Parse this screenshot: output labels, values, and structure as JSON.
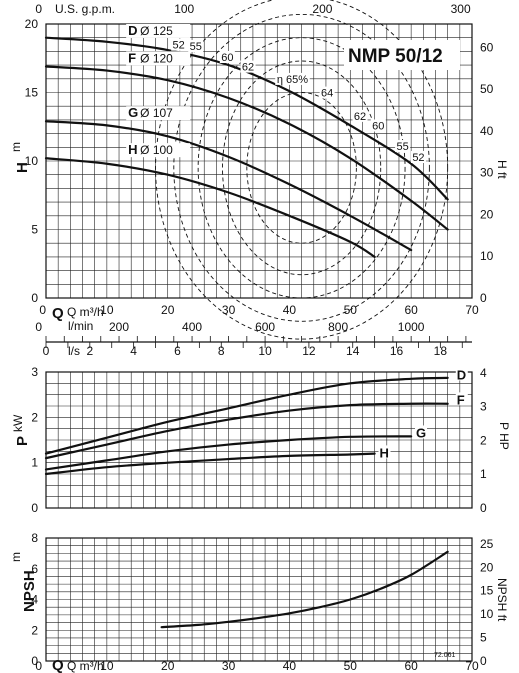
{
  "chart_data": [
    {
      "type": "line",
      "model_label": "NMP 50/12",
      "ylabel": "H",
      "ylabel_unit": "m",
      "y2label": "H ft",
      "xunits_top": "U.S. g.p.m.",
      "x": "Q m³/h",
      "xlim": [
        0,
        70
      ],
      "ylim": [
        0,
        20
      ],
      "y2lim": [
        0,
        65.6
      ],
      "top_ticks": [
        "0",
        "100",
        "200",
        "300"
      ],
      "y_ticks": [
        "0",
        "5",
        "10",
        "15",
        "20"
      ],
      "y2_ticks": [
        "0",
        "10",
        "20",
        "30",
        "40",
        "50",
        "60"
      ],
      "series": [
        {
          "name": "D",
          "diam_label": "Ø 125",
          "x": [
            0,
            10,
            20,
            30,
            40,
            50,
            60,
            66
          ],
          "values": [
            19.0,
            18.7,
            18.1,
            17.0,
            15.1,
            12.6,
            9.8,
            7.2
          ]
        },
        {
          "name": "F",
          "diam_label": "Ø 120",
          "x": [
            0,
            10,
            20,
            30,
            40,
            50,
            60,
            66
          ],
          "values": [
            16.9,
            16.6,
            15.9,
            14.6,
            12.7,
            10.2,
            7.1,
            5.0
          ]
        },
        {
          "name": "G",
          "diam_label": "Ø 107",
          "x": [
            0,
            10,
            20,
            30,
            40,
            50,
            60
          ],
          "values": [
            12.9,
            12.6,
            11.8,
            10.3,
            8.3,
            6.0,
            3.5
          ]
        },
        {
          "name": "H",
          "diam_label": "Ø 100",
          "x": [
            0,
            10,
            20,
            30,
            40,
            50,
            54
          ],
          "values": [
            10.2,
            9.8,
            9.0,
            7.7,
            6.0,
            4.1,
            3.0
          ]
        }
      ],
      "efficiency_labels": [
        "52",
        "55",
        "60",
        "62",
        "η 65%",
        "64",
        "62",
        "60",
        "55",
        "52"
      ]
    },
    {
      "type": "axis",
      "units": [
        "l/min",
        "l/s"
      ],
      "lmin_ticks": [
        "0",
        "200",
        "400",
        "600",
        "800",
        "1000"
      ],
      "ls_ticks": [
        "0",
        "2",
        "4",
        "6",
        "8",
        "10",
        "12",
        "14",
        "16",
        "18"
      ]
    },
    {
      "type": "line",
      "ylabel": "P",
      "ylabel_unit": "kW",
      "y2label": "P HP",
      "xlim": [
        0,
        70
      ],
      "ylim": [
        0,
        3
      ],
      "y2lim": [
        0,
        4.02
      ],
      "y_ticks": [
        "0",
        "1",
        "2",
        "3"
      ],
      "y2_ticks": [
        "0",
        "1",
        "2",
        "3",
        "4"
      ],
      "series": [
        {
          "name": "D",
          "x": [
            0,
            10,
            20,
            30,
            40,
            50,
            60,
            66
          ],
          "values": [
            1.2,
            1.55,
            1.9,
            2.2,
            2.5,
            2.75,
            2.85,
            2.87
          ]
        },
        {
          "name": "F",
          "x": [
            0,
            10,
            20,
            30,
            40,
            50,
            60,
            66
          ],
          "values": [
            1.1,
            1.4,
            1.7,
            1.95,
            2.15,
            2.27,
            2.3,
            2.3
          ]
        },
        {
          "name": "G",
          "x": [
            0,
            10,
            20,
            30,
            40,
            50,
            60
          ],
          "values": [
            0.85,
            1.05,
            1.25,
            1.4,
            1.5,
            1.57,
            1.58
          ]
        },
        {
          "name": "H",
          "x": [
            0,
            10,
            20,
            30,
            40,
            50,
            54
          ],
          "values": [
            0.75,
            0.9,
            1.0,
            1.08,
            1.15,
            1.18,
            1.2
          ]
        }
      ]
    },
    {
      "type": "line",
      "ylabel": "NPSH",
      "ylabel_unit": "m",
      "y2label": "NPSH ft",
      "x": "Q m³/h",
      "xlim": [
        0,
        70
      ],
      "ylim": [
        0,
        8
      ],
      "y2lim": [
        0,
        26.2
      ],
      "x_ticks": [
        "0",
        "10",
        "20",
        "30",
        "40",
        "50",
        "60",
        "70"
      ],
      "y_ticks": [
        "0",
        "2",
        "4",
        "6",
        "8"
      ],
      "y2_ticks": [
        "0",
        "5",
        "10",
        "15",
        "20",
        "25"
      ],
      "series": [
        {
          "x": [
            19,
            25,
            30,
            35,
            40,
            45,
            50,
            55,
            60,
            66
          ],
          "values": [
            2.2,
            2.35,
            2.55,
            2.8,
            3.1,
            3.5,
            4.0,
            4.7,
            5.6,
            7.1
          ]
        }
      ],
      "code": "72.061"
    }
  ]
}
